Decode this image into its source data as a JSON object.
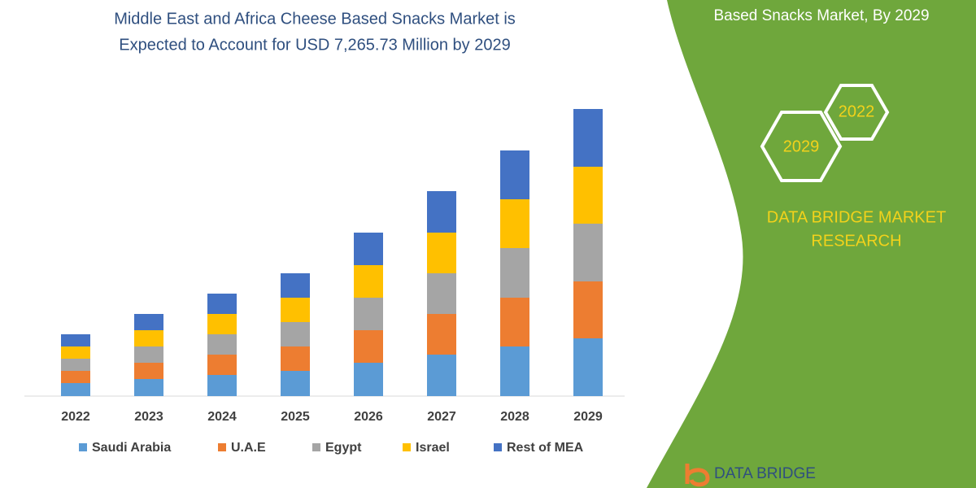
{
  "chart_data": {
    "type": "stacked_bar",
    "title": [
      "Middle East and Africa Cheese Based Snacks Market is",
      "Expected to Account for USD 7,265.73 Million by 2029"
    ],
    "categories": [
      "2022",
      "2023",
      "2024",
      "2025",
      "2026",
      "2027",
      "2028",
      "2029"
    ],
    "series": [
      {
        "name": "Saudi Arabia",
        "color": "#5b9bd5",
        "values": [
          16,
          21,
          26,
          31,
          41,
          51,
          61,
          71
        ]
      },
      {
        "name": "U.A.E",
        "color": "#ed7d31",
        "values": [
          15,
          20,
          25,
          30,
          40,
          50,
          60,
          70
        ]
      },
      {
        "name": "Egypt",
        "color": "#a5a5a5",
        "values": [
          15,
          20,
          25,
          30,
          40,
          50,
          61,
          71
        ]
      },
      {
        "name": "Israel",
        "color": "#ffc000",
        "values": [
          15,
          20,
          25,
          30,
          40,
          50,
          60,
          70
        ]
      },
      {
        "name": "Rest of MEA",
        "color": "#4472c4",
        "values": [
          15,
          20,
          25,
          30,
          40,
          51,
          60,
          71
        ]
      }
    ],
    "ylim": [
      0,
      360
    ]
  },
  "panel": {
    "heading": "Based Snacks Market, By 2029",
    "hexagons": [
      "2022",
      "2029"
    ],
    "brand": [
      "DATA BRIDGE MARKET",
      "RESEARCH"
    ],
    "logo": "DATA BRIDGE"
  }
}
